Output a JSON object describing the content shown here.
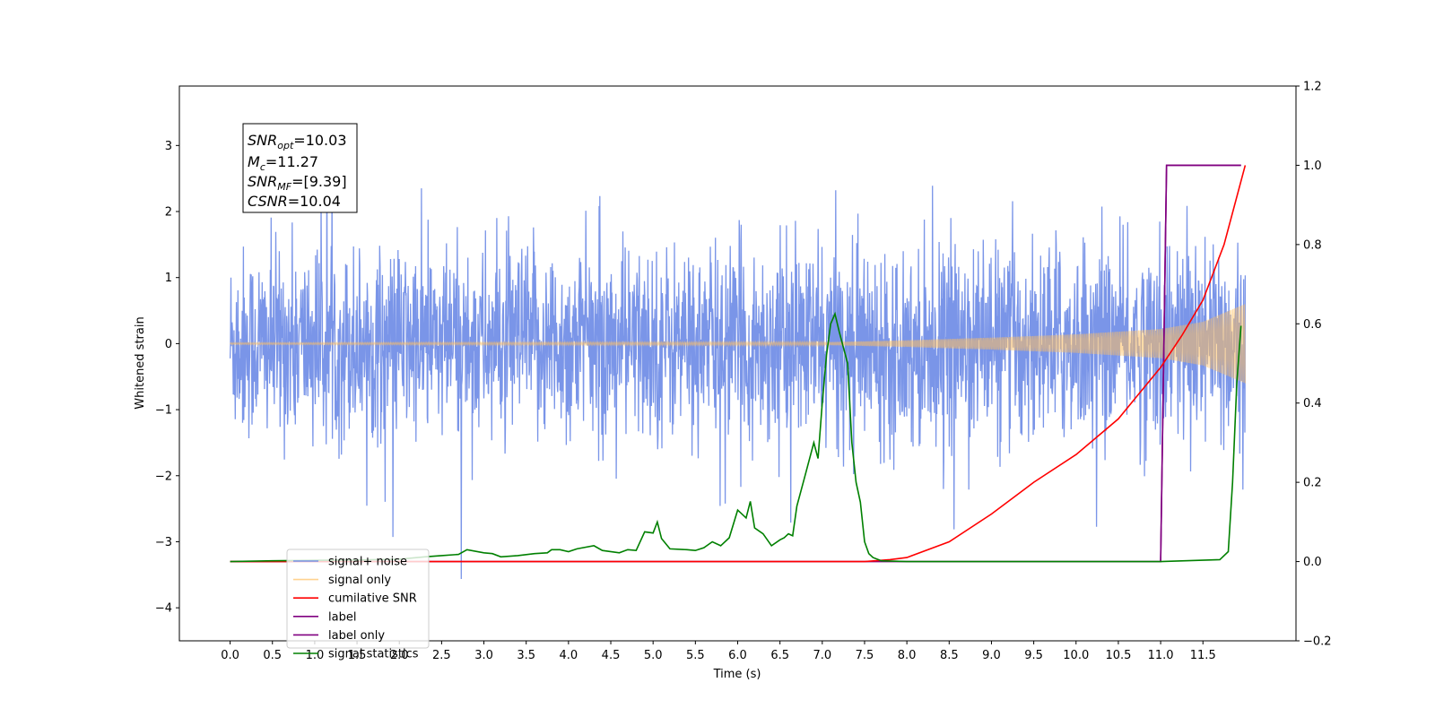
{
  "chart_data": {
    "type": "line",
    "title": "",
    "xlabel": "Time (s)",
    "ylabel": "Whitened strain",
    "xlim": [
      -0.6,
      12.6
    ],
    "ylim": [
      -4.5,
      3.9
    ],
    "ylim_right": [
      -0.2,
      1.2
    ],
    "x_ticks": [
      "0.0",
      "0.5",
      "1.0",
      "1.5",
      "2.0",
      "2.5",
      "3.0",
      "3.5",
      "4.0",
      "4.5",
      "5.0",
      "5.5",
      "6.0",
      "6.5",
      "7.0",
      "7.5",
      "8.0",
      "8.5",
      "9.0",
      "9.5",
      "10.0",
      "10.5",
      "11.0",
      "11.5"
    ],
    "y_ticks_left": [
      "−4",
      "−3",
      "−2",
      "−1",
      "0",
      "1",
      "2",
      "3"
    ],
    "y_ticks_right": [
      "−0.2",
      "0.0",
      "0.2",
      "0.4",
      "0.6",
      "0.8",
      "1.0",
      "1.2"
    ],
    "grid": false,
    "legend_position": "lower-left",
    "annotation": {
      "lines": [
        {
          "base": "SNR",
          "sub": "opt",
          "value": "=10.03"
        },
        {
          "base": "M",
          "sub": "c",
          "value": "=11.27"
        },
        {
          "base": "SNR",
          "sub": "MF",
          "value": "=[9.39]"
        },
        {
          "base": "CSNR",
          "sub": "",
          "value": "=10.04"
        }
      ]
    },
    "series": [
      {
        "name": "signal+ noise",
        "color": "#6b8ae6",
        "axis": "left",
        "description": "whitened noise, std ~0.75, spikes to ~±3.5 over x 0–12"
      },
      {
        "name": "signal only",
        "color": "#ffbf60",
        "axis": "left",
        "envelope": {
          "x": [
            0,
            7.0,
            8.0,
            9.0,
            10.0,
            11.0,
            11.5,
            12.0
          ],
          "amp": [
            0.01,
            0.02,
            0.05,
            0.09,
            0.14,
            0.22,
            0.33,
            0.6
          ]
        }
      },
      {
        "name": "cumilative SNR",
        "color": "#ff0000",
        "axis": "right",
        "x": [
          0,
          7.5,
          7.8,
          8.0,
          8.5,
          9.0,
          9.5,
          10.0,
          10.5,
          11.0,
          11.25,
          11.5,
          11.75,
          12.0
        ],
        "y": [
          0.0,
          0.0,
          0.005,
          0.01,
          0.05,
          0.12,
          0.2,
          0.27,
          0.36,
          0.49,
          0.57,
          0.66,
          0.8,
          1.0
        ]
      },
      {
        "name": "label",
        "color": "#800080",
        "axis": "right",
        "x": [
          11.0,
          11.07,
          11.07,
          11.95
        ],
        "y": [
          0.0,
          1.0,
          1.0,
          1.0
        ]
      },
      {
        "name": "label only",
        "color": "#800080",
        "axis": "right",
        "x": [
          0,
          11.0,
          11.07,
          11.95
        ],
        "y": [
          0.0,
          0.0,
          1.0,
          1.0
        ]
      },
      {
        "name": "signal statistics",
        "color": "#008000",
        "axis": "right",
        "x": [
          0,
          0.5,
          1.0,
          1.5,
          2.0,
          2.3,
          2.5,
          2.7,
          2.8,
          3.0,
          3.1,
          3.2,
          3.4,
          3.6,
          3.75,
          3.8,
          3.9,
          4.0,
          4.1,
          4.3,
          4.4,
          4.6,
          4.7,
          4.8,
          4.9,
          5.0,
          5.05,
          5.1,
          5.2,
          5.4,
          5.5,
          5.6,
          5.7,
          5.8,
          5.9,
          6.0,
          6.1,
          6.15,
          6.2,
          6.3,
          6.4,
          6.5,
          6.55,
          6.6,
          6.65,
          6.7,
          6.8,
          6.9,
          6.95,
          7.0,
          7.05,
          7.1,
          7.15,
          7.2,
          7.3,
          7.35,
          7.4,
          7.45,
          7.5,
          7.55,
          7.6,
          7.7,
          8.0,
          10.0,
          11.0,
          11.7,
          11.8,
          11.85,
          11.9,
          11.95
        ],
        "y": [
          0,
          0.002,
          0.003,
          0.004,
          0.006,
          0.012,
          0.015,
          0.018,
          0.03,
          0.022,
          0.02,
          0.012,
          0.015,
          0.02,
          0.022,
          0.03,
          0.03,
          0.025,
          0.032,
          0.04,
          0.028,
          0.022,
          0.03,
          0.028,
          0.075,
          0.072,
          0.1,
          0.058,
          0.032,
          0.03,
          0.028,
          0.035,
          0.05,
          0.04,
          0.06,
          0.13,
          0.11,
          0.152,
          0.085,
          0.07,
          0.04,
          0.055,
          0.06,
          0.07,
          0.065,
          0.14,
          0.22,
          0.3,
          0.26,
          0.4,
          0.52,
          0.6,
          0.625,
          0.58,
          0.5,
          0.3,
          0.2,
          0.15,
          0.05,
          0.02,
          0.01,
          0.002,
          0.0,
          0.0,
          0.0,
          0.005,
          0.025,
          0.2,
          0.45,
          0.595
        ]
      }
    ]
  }
}
